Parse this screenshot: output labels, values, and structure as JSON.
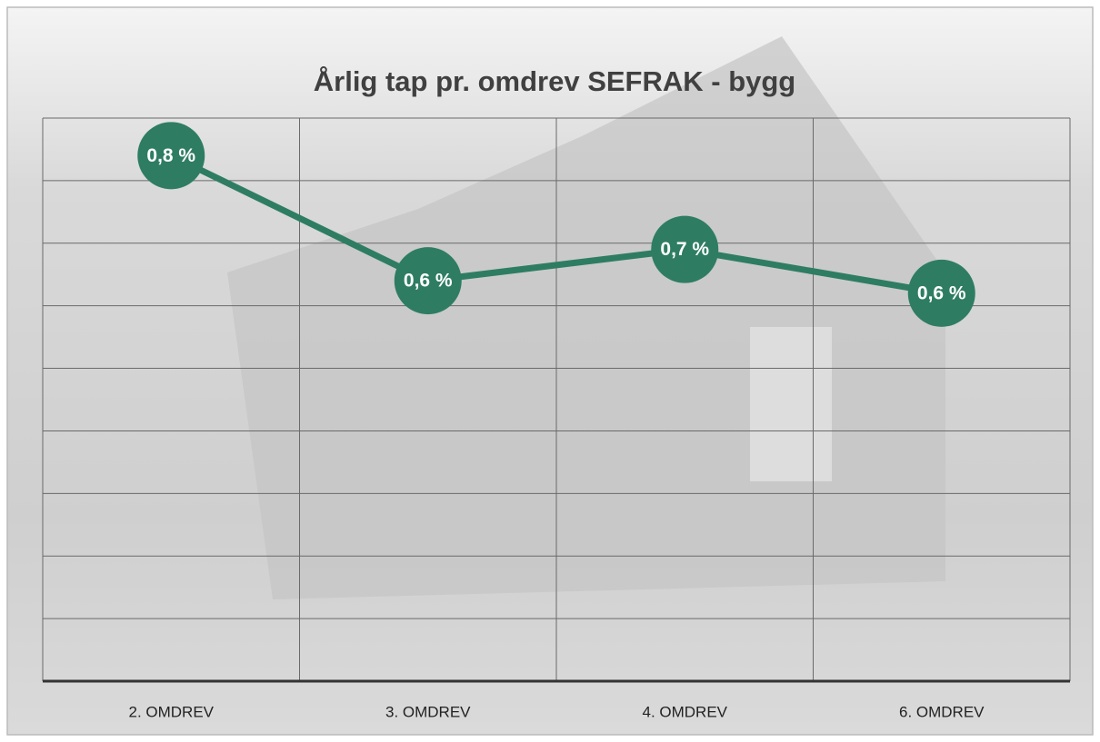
{
  "chart_data": {
    "type": "line",
    "title": "Årlig tap pr. omdrev SEFRAK - bygg",
    "categories": [
      "2. OMDREV",
      "3. OMDREV",
      "4. OMDREV",
      "6. OMDREV"
    ],
    "values": [
      0.84,
      0.64,
      0.69,
      0.62
    ],
    "value_labels": [
      "0,8 %",
      "0,6 %",
      "0,7 %",
      "0,6 %"
    ],
    "color": "#2e7d62",
    "ylim": [
      0,
      0.9
    ],
    "yticks": [
      0,
      0.1,
      0.2,
      0.3,
      0.4,
      0.5,
      0.6,
      0.7,
      0.8,
      0.9
    ],
    "grid": true
  }
}
